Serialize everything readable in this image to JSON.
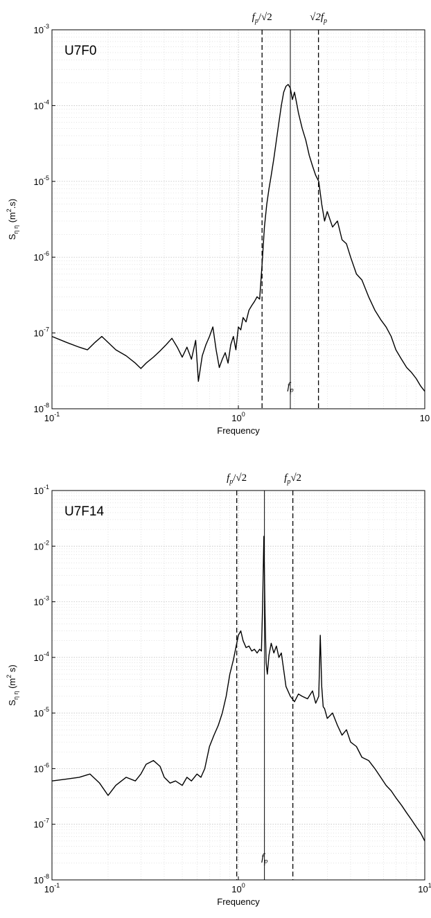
{
  "chart_data": [
    {
      "type": "line",
      "panel_label": "U7F0",
      "xlabel": "Frequency",
      "ylabel": "S",
      "ylabel_sub": "η η",
      "ylabel_units": "(m",
      "ylabel_units_sup": "2",
      "ylabel_units_end": ".s)",
      "xscale": "log",
      "yscale": "log",
      "xlim": [
        0.1,
        10
      ],
      "ylim": [
        1e-08,
        0.001
      ],
      "x_ticks": [
        {
          "value": 0.1,
          "base": "10",
          "exp": "-1"
        },
        {
          "value": 1,
          "base": "10",
          "exp": "0"
        },
        {
          "value": 10,
          "base": "10",
          "exp": ""
        }
      ],
      "y_ticks": [
        {
          "value": 1e-08,
          "base": "10",
          "exp": "-8"
        },
        {
          "value": 1e-07,
          "base": "10",
          "exp": "-7"
        },
        {
          "value": 1e-06,
          "base": "10",
          "exp": "-6"
        },
        {
          "value": 1e-05,
          "base": "10",
          "exp": "-5"
        },
        {
          "value": 0.0001,
          "base": "10",
          "exp": "-4"
        },
        {
          "value": 0.001,
          "base": "10",
          "exp": "-3"
        }
      ],
      "grid": true,
      "vlines": [
        {
          "x": 1.34,
          "style": "dashed",
          "label": "f_p/√2",
          "label_pos": "top"
        },
        {
          "x": 1.9,
          "style": "solid",
          "label": "f_p",
          "label_pos": "bottom"
        },
        {
          "x": 2.69,
          "style": "dashed",
          "label": "√2f_p",
          "label_pos": "top"
        }
      ],
      "series": [
        {
          "x": [
            0.1,
            0.12,
            0.14,
            0.155,
            0.17,
            0.185,
            0.2,
            0.22,
            0.25,
            0.28,
            0.3,
            0.32,
            0.35,
            0.38,
            0.41,
            0.44,
            0.47,
            0.5,
            0.53,
            0.56,
            0.59,
            0.61,
            0.64,
            0.67,
            0.7,
            0.73,
            0.76,
            0.79,
            0.82,
            0.85,
            0.88,
            0.91,
            0.94,
            0.97,
            1.0,
            1.03,
            1.06,
            1.1,
            1.14,
            1.18,
            1.22,
            1.26,
            1.3,
            1.34,
            1.38,
            1.42,
            1.46,
            1.5,
            1.55,
            1.6,
            1.65,
            1.7,
            1.75,
            1.8,
            1.85,
            1.9,
            1.95,
            2.0,
            2.05,
            2.1,
            2.2,
            2.3,
            2.4,
            2.5,
            2.6,
            2.7,
            2.8,
            2.9,
            3.0,
            3.2,
            3.4,
            3.6,
            3.8,
            4.0,
            4.3,
            4.6,
            5.0,
            5.4,
            5.8,
            6.2,
            6.6,
            7.0,
            7.5,
            8.0,
            8.5,
            9.0,
            9.5,
            10.0
          ],
          "y": [
            9e-08,
            7.5e-08,
            6.5e-08,
            6e-08,
            7.5e-08,
            9e-08,
            7.5e-08,
            6e-08,
            5e-08,
            4e-08,
            3.4e-08,
            4e-08,
            4.8e-08,
            5.8e-08,
            7e-08,
            8.5e-08,
            6.5e-08,
            4.8e-08,
            6.5e-08,
            4.5e-08,
            8e-08,
            2.3e-08,
            5e-08,
            7e-08,
            9e-08,
            1.2e-07,
            6e-08,
            3.5e-08,
            4.5e-08,
            5.5e-08,
            4e-08,
            7e-08,
            9e-08,
            6e-08,
            1.2e-07,
            1.1e-07,
            1.6e-07,
            1.4e-07,
            2e-07,
            2.3e-07,
            2.6e-07,
            3e-07,
            2.8e-07,
            8e-07,
            2.5e-06,
            5e-06,
            8e-06,
            1.2e-05,
            2e-05,
            3.5e-05,
            6e-05,
            0.0001,
            0.00015,
            0.00018,
            0.00019,
            0.00017,
            0.00012,
            0.00015,
            0.00011,
            8e-05,
            5e-05,
            3.5e-05,
            2.2e-05,
            1.6e-05,
            1.2e-05,
            1e-05,
            5e-06,
            3e-06,
            4e-06,
            2.5e-06,
            3e-06,
            1.7e-06,
            1.5e-06,
            1e-06,
            6e-07,
            5e-07,
            3e-07,
            2e-07,
            1.5e-07,
            1.2e-07,
            9e-08,
            6e-08,
            4.5e-08,
            3.5e-08,
            3e-08,
            2.5e-08,
            2e-08,
            1.7e-08
          ]
        }
      ]
    },
    {
      "type": "line",
      "panel_label": "U7F14",
      "xlabel": "Frequency",
      "ylabel": "S",
      "ylabel_sub": "η η",
      "ylabel_units": "(m",
      "ylabel_units_sup": "2",
      "ylabel_units_end": " s)",
      "xscale": "log",
      "yscale": "log",
      "xlim": [
        0.1,
        10
      ],
      "ylim": [
        1e-08,
        0.1
      ],
      "x_ticks": [
        {
          "value": 0.1,
          "base": "10",
          "exp": "-1"
        },
        {
          "value": 1,
          "base": "10",
          "exp": "0"
        },
        {
          "value": 10,
          "base": "10",
          "exp": "1"
        }
      ],
      "y_ticks": [
        {
          "value": 1e-08,
          "base": "10",
          "exp": "-8"
        },
        {
          "value": 1e-07,
          "base": "10",
          "exp": "-7"
        },
        {
          "value": 1e-06,
          "base": "10",
          "exp": "-6"
        },
        {
          "value": 1e-05,
          "base": "10",
          "exp": "-5"
        },
        {
          "value": 0.0001,
          "base": "10",
          "exp": "-4"
        },
        {
          "value": 0.001,
          "base": "10",
          "exp": "-3"
        },
        {
          "value": 0.01,
          "base": "10",
          "exp": "-2"
        },
        {
          "value": 0.1,
          "base": "10",
          "exp": "-1"
        }
      ],
      "grid": true,
      "vlines": [
        {
          "x": 0.98,
          "style": "dashed",
          "label": "f_p/√2",
          "label_pos": "top"
        },
        {
          "x": 1.38,
          "style": "solid",
          "label": "f_p",
          "label_pos": "bottom"
        },
        {
          "x": 1.96,
          "style": "dashed",
          "label": "f_p√2",
          "label_pos": "top"
        }
      ],
      "series": [
        {
          "x": [
            0.1,
            0.12,
            0.14,
            0.16,
            0.18,
            0.2,
            0.22,
            0.25,
            0.28,
            0.3,
            0.32,
            0.35,
            0.38,
            0.4,
            0.43,
            0.46,
            0.5,
            0.53,
            0.56,
            0.6,
            0.63,
            0.66,
            0.7,
            0.74,
            0.78,
            0.82,
            0.86,
            0.9,
            0.94,
            0.97,
            1.0,
            1.03,
            1.06,
            1.1,
            1.14,
            1.18,
            1.22,
            1.26,
            1.3,
            1.33,
            1.35,
            1.37,
            1.39,
            1.41,
            1.43,
            1.46,
            1.5,
            1.55,
            1.6,
            1.65,
            1.7,
            1.75,
            1.8,
            1.9,
            2.0,
            2.1,
            2.2,
            2.35,
            2.5,
            2.6,
            2.7,
            2.75,
            2.8,
            2.85,
            2.9,
            3.0,
            3.2,
            3.4,
            3.6,
            3.8,
            4.0,
            4.3,
            4.6,
            5.0,
            5.4,
            5.8,
            6.2,
            6.6,
            7.0,
            7.5,
            8.0,
            8.5,
            9.0,
            9.5,
            10.0
          ],
          "y": [
            6e-07,
            6.5e-07,
            7e-07,
            8e-07,
            5.5e-07,
            3.3e-07,
            5e-07,
            7e-07,
            6e-07,
            8e-07,
            1.2e-06,
            1.4e-06,
            1.1e-06,
            7e-07,
            5.5e-07,
            6e-07,
            5e-07,
            7e-07,
            6e-07,
            8e-07,
            7e-07,
            1e-06,
            2.5e-06,
            4e-06,
            6e-06,
            1e-05,
            2e-05,
            5e-05,
            9e-05,
            0.00015,
            0.00025,
            0.0003,
            0.0002,
            0.00015,
            0.00016,
            0.00013,
            0.00014,
            0.00012,
            0.00014,
            0.00013,
            0.001,
            0.015,
            0.0006,
            8e-05,
            5e-05,
            0.00011,
            0.00018,
            0.00012,
            0.00016,
            0.0001,
            0.00012,
            6e-05,
            3e-05,
            2e-05,
            1.6e-05,
            2.2e-05,
            2e-05,
            1.8e-05,
            2.5e-05,
            1.5e-05,
            2e-05,
            0.00025,
            3e-05,
            1.3e-05,
            1.2e-05,
            8e-06,
            1e-05,
            6e-06,
            4e-06,
            5e-06,
            3e-06,
            2.5e-06,
            1.6e-06,
            1.4e-06,
            1e-06,
            7e-07,
            5e-07,
            4e-07,
            3e-07,
            2.2e-07,
            1.6e-07,
            1.2e-07,
            9e-08,
            7e-08,
            5e-08
          ]
        }
      ]
    }
  ]
}
